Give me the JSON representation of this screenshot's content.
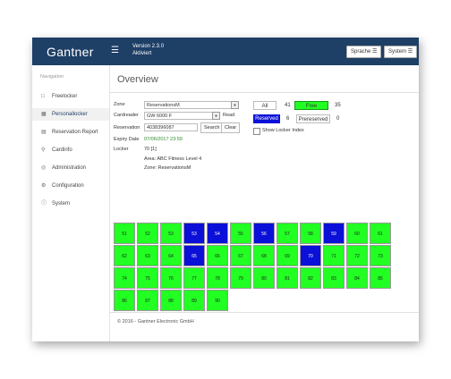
{
  "header": {
    "brand": "Gantner",
    "version": "Version 2.3.0",
    "status": "Aktiviert",
    "language_button": "Sprache",
    "system_button": "System"
  },
  "sidebar": {
    "heading": "Navigation",
    "items": [
      {
        "label": "Freelocker",
        "icon": "lock-icon",
        "active": false
      },
      {
        "label": "Personallocker",
        "icon": "locker-icon",
        "active": true
      },
      {
        "label": "Reservation Report",
        "icon": "calendar-icon",
        "active": false
      },
      {
        "label": "Cardinfo",
        "icon": "search-icon",
        "active": false
      },
      {
        "label": "Administration",
        "icon": "globe-icon",
        "active": false
      },
      {
        "label": "Configuration",
        "icon": "gear-icon",
        "active": false
      },
      {
        "label": "System",
        "icon": "info-icon",
        "active": false
      }
    ]
  },
  "overview": {
    "title": "Overview",
    "zone_label": "Zone",
    "zone_value": "ReservationsM",
    "cardreader_label": "Cardreader",
    "cardreader_value": "GW 6000 F",
    "read_button": "Read",
    "reservation_label": "Reservation",
    "reservation_value": "4038396087",
    "search_button": "Search",
    "clear_button": "Clear",
    "expiry_label": "Expiry Date",
    "expiry_value": "07/06/2017 23:59",
    "locker_label": "Locker",
    "locker_value": "70 [1]",
    "area_line": "Area: ABC Fitness Level 4",
    "zone_line": "Zone: ReservationsM"
  },
  "filters": {
    "all_label": "All",
    "all_count": "41",
    "free_label": "Free",
    "free_count": "35",
    "reserved_label": "Reserved",
    "reserved_count": "6",
    "prereserved_label": "Prereserved",
    "prereserved_count": "0",
    "show_index_label": "Show Locker Index"
  },
  "colors": {
    "free": "#22ff22",
    "reserved": "#0a10d8",
    "header": "#1e3f66"
  },
  "lockers": [
    {
      "row": [
        {
          "n": "51",
          "s": "free"
        },
        {
          "n": "52",
          "s": "free"
        },
        {
          "n": "53",
          "s": "free"
        },
        {
          "n": "53",
          "s": "res"
        },
        {
          "n": "54",
          "s": "res"
        },
        {
          "n": "55",
          "s": "free"
        },
        {
          "n": "56",
          "s": "res"
        },
        {
          "n": "57",
          "s": "free"
        },
        {
          "n": "58",
          "s": "free"
        },
        {
          "n": "59",
          "s": "res"
        },
        {
          "n": "60",
          "s": "free"
        },
        {
          "n": "61",
          "s": "free"
        }
      ]
    },
    {
      "row": [
        {
          "n": "62",
          "s": "free"
        },
        {
          "n": "63",
          "s": "free"
        },
        {
          "n": "64",
          "s": "free"
        },
        {
          "n": "65",
          "s": "res"
        },
        {
          "n": "66",
          "s": "free"
        },
        {
          "n": "67",
          "s": "free"
        },
        {
          "n": "68",
          "s": "free"
        },
        {
          "n": "69",
          "s": "free"
        },
        {
          "n": "70",
          "s": "res"
        },
        {
          "n": "71",
          "s": "free"
        },
        {
          "n": "72",
          "s": "free"
        },
        {
          "n": "73",
          "s": "free"
        }
      ]
    },
    {
      "row": [
        {
          "n": "74",
          "s": "free"
        },
        {
          "n": "75",
          "s": "free"
        },
        {
          "n": "76",
          "s": "free"
        },
        {
          "n": "77",
          "s": "free"
        },
        {
          "n": "78",
          "s": "free"
        },
        {
          "n": "79",
          "s": "free"
        },
        {
          "n": "80",
          "s": "free"
        },
        {
          "n": "81",
          "s": "free"
        },
        {
          "n": "82",
          "s": "free"
        },
        {
          "n": "83",
          "s": "free"
        },
        {
          "n": "84",
          "s": "free"
        },
        {
          "n": "85",
          "s": "free"
        }
      ]
    },
    {
      "row": [
        {
          "n": "86",
          "s": "free"
        },
        {
          "n": "87",
          "s": "free"
        },
        {
          "n": "88",
          "s": "free"
        },
        {
          "n": "89",
          "s": "free"
        },
        {
          "n": "90",
          "s": "free"
        }
      ]
    }
  ],
  "footer": {
    "copyright": "© 2016 - Gantner Electronic GmbH"
  }
}
